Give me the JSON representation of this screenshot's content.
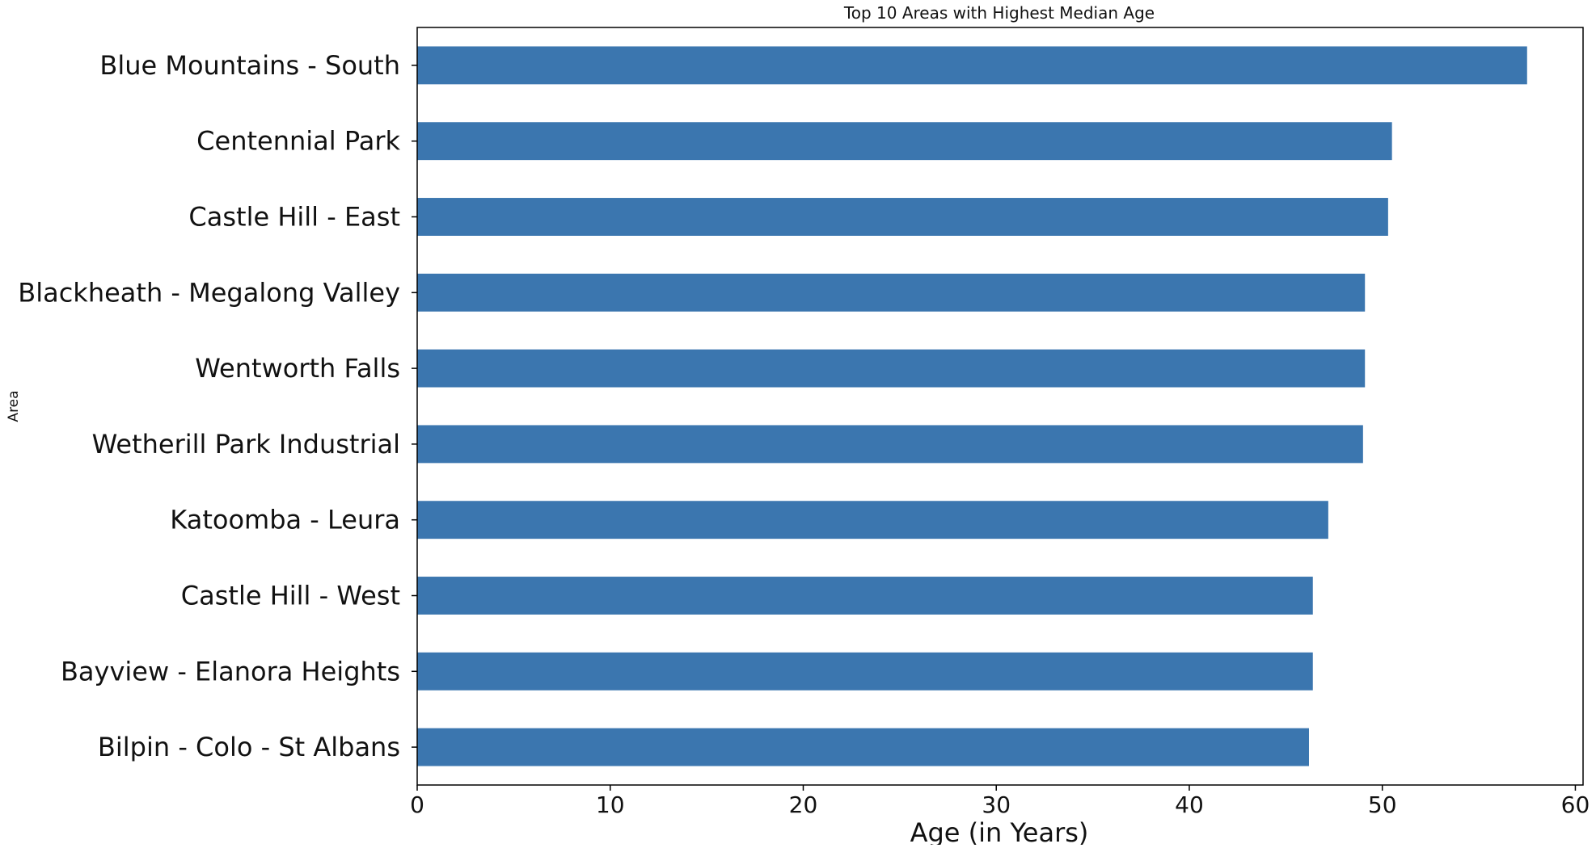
{
  "chart_data": {
    "type": "bar",
    "orientation": "horizontal",
    "title": "Top 10 Areas with Highest Median Age",
    "xlabel": "Age (in Years)",
    "ylabel": "Area",
    "categories": [
      "Blue Mountains - South",
      "Centennial Park",
      "Castle Hill - East",
      "Blackheath - Megalong Valley",
      "Wentworth Falls",
      "Wetherill Park Industrial",
      "Katoomba - Leura",
      "Castle Hill - West",
      "Bayview - Elanora Heights",
      "Bilpin - Colo - St Albans"
    ],
    "values": [
      57.5,
      50.5,
      50.3,
      49.1,
      49.1,
      49.0,
      47.2,
      46.4,
      46.4,
      46.2
    ],
    "xlim": [
      0,
      60.4
    ],
    "xticks": [
      0,
      10,
      20,
      30,
      40,
      50,
      60
    ],
    "grid": false,
    "legend": "none",
    "bar_color": "#3b76af"
  }
}
